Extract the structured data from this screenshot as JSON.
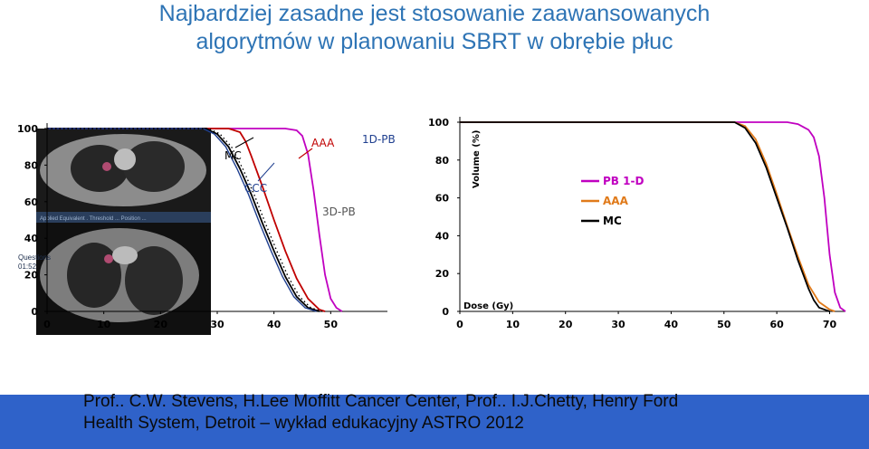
{
  "slide": {
    "title_line1": "Najbardziej zasadne jest stosowanie zaawansowanych",
    "title_line2": "algorytmów w planowaniu SBRT w obrębie płuc",
    "footer_line1": "Prof.. C.W. Stevens, H.Lee Moffitt Cancer Center, Prof.. I.J.Chetty, Henry Ford",
    "footer_line2": "Health System, Detroit – wykład edukacyjny ASTRO 2012"
  },
  "overlay": {
    "questions": "Questions",
    "timer": "01:52"
  },
  "colors": {
    "title": "#2e74b5",
    "footer_bg": "#2f62c9",
    "pb": "#c000c0",
    "aaa": "#c00000",
    "aaa_right": "#e07a1a",
    "mc": "#000000",
    "ccc": "#1f3f8f"
  },
  "chart_data": [
    {
      "type": "line",
      "xlim": [
        0,
        60
      ],
      "ylim": [
        0,
        100
      ],
      "x_ticks": [
        "0",
        "10",
        "20",
        "30",
        "40",
        "50"
      ],
      "y_ticks": [
        "0",
        "20",
        "40",
        "60",
        "80",
        "100"
      ],
      "annotations": [
        "MC",
        "CCC",
        "AAA",
        "1D-PB",
        "3D-PB"
      ],
      "series": [
        {
          "name": "1D-PB",
          "color": "#c000c0",
          "x": [
            0,
            42,
            44,
            45,
            46,
            47,
            48,
            49,
            50,
            51,
            52
          ],
          "y": [
            100,
            100,
            99,
            96,
            86,
            66,
            42,
            20,
            7,
            2,
            0
          ]
        },
        {
          "name": "AAA",
          "color": "#c00000",
          "x": [
            0,
            32,
            34,
            35,
            36,
            38,
            40,
            42,
            44,
            46,
            48,
            49
          ],
          "y": [
            100,
            100,
            98,
            93,
            85,
            68,
            50,
            33,
            18,
            7,
            1,
            0
          ]
        },
        {
          "name": "MC",
          "color": "#000000",
          "x": [
            0,
            28,
            30,
            32,
            34,
            36,
            38,
            40,
            42,
            44,
            46,
            48
          ],
          "y": [
            100,
            100,
            97,
            90,
            78,
            64,
            48,
            33,
            19,
            8,
            2,
            0
          ]
        },
        {
          "name": "CCC",
          "color": "#1f3f8f",
          "x": [
            0,
            27.5,
            29.5,
            31.5,
            33.5,
            35.5,
            37.5,
            39.5,
            41.5,
            43.5,
            45.5,
            47.5
          ],
          "y": [
            100,
            100,
            97,
            90,
            78,
            64,
            48,
            33,
            19,
            8,
            2,
            0
          ]
        },
        {
          "name": "3D-PB",
          "color": "#000000",
          "x": [
            0,
            28.5,
            30.5,
            32.5,
            34.5,
            36.5,
            38.5,
            40.5,
            42.5,
            44.5,
            46.5,
            48.5
          ],
          "y": [
            100,
            100,
            97,
            90,
            78,
            64,
            48,
            33,
            19,
            8,
            2,
            0
          ]
        }
      ]
    },
    {
      "type": "line",
      "xlim": [
        0,
        73
      ],
      "ylim": [
        0,
        100
      ],
      "xlabel": "Dose (Gy)",
      "ylabel": "Volume (%)",
      "x_ticks": [
        "0",
        "10",
        "20",
        "30",
        "40",
        "50",
        "60",
        "70"
      ],
      "y_ticks": [
        "0",
        "20",
        "40",
        "60",
        "80",
        "100"
      ],
      "legend_position": "right",
      "series": [
        {
          "name": "PB 1-D",
          "color": "#c000c0",
          "x": [
            0,
            62,
            64,
            66,
            67,
            68,
            69,
            70,
            71,
            72,
            73
          ],
          "y": [
            100,
            100,
            99,
            96,
            92,
            82,
            60,
            30,
            10,
            2,
            0
          ]
        },
        {
          "name": "AAA",
          "color": "#e07a1a",
          "x": [
            0,
            52,
            54,
            56,
            58,
            60,
            62,
            64,
            66,
            68,
            70,
            71
          ],
          "y": [
            100,
            100,
            98,
            91,
            78,
            62,
            45,
            29,
            14,
            5,
            1,
            0
          ]
        },
        {
          "name": "MC",
          "color": "#000000",
          "x": [
            0,
            52,
            54,
            56,
            58,
            60,
            62,
            64,
            66,
            67,
            68,
            70
          ],
          "y": [
            100,
            100,
            97,
            89,
            76,
            60,
            44,
            27,
            12,
            6,
            2,
            0
          ]
        }
      ]
    }
  ]
}
